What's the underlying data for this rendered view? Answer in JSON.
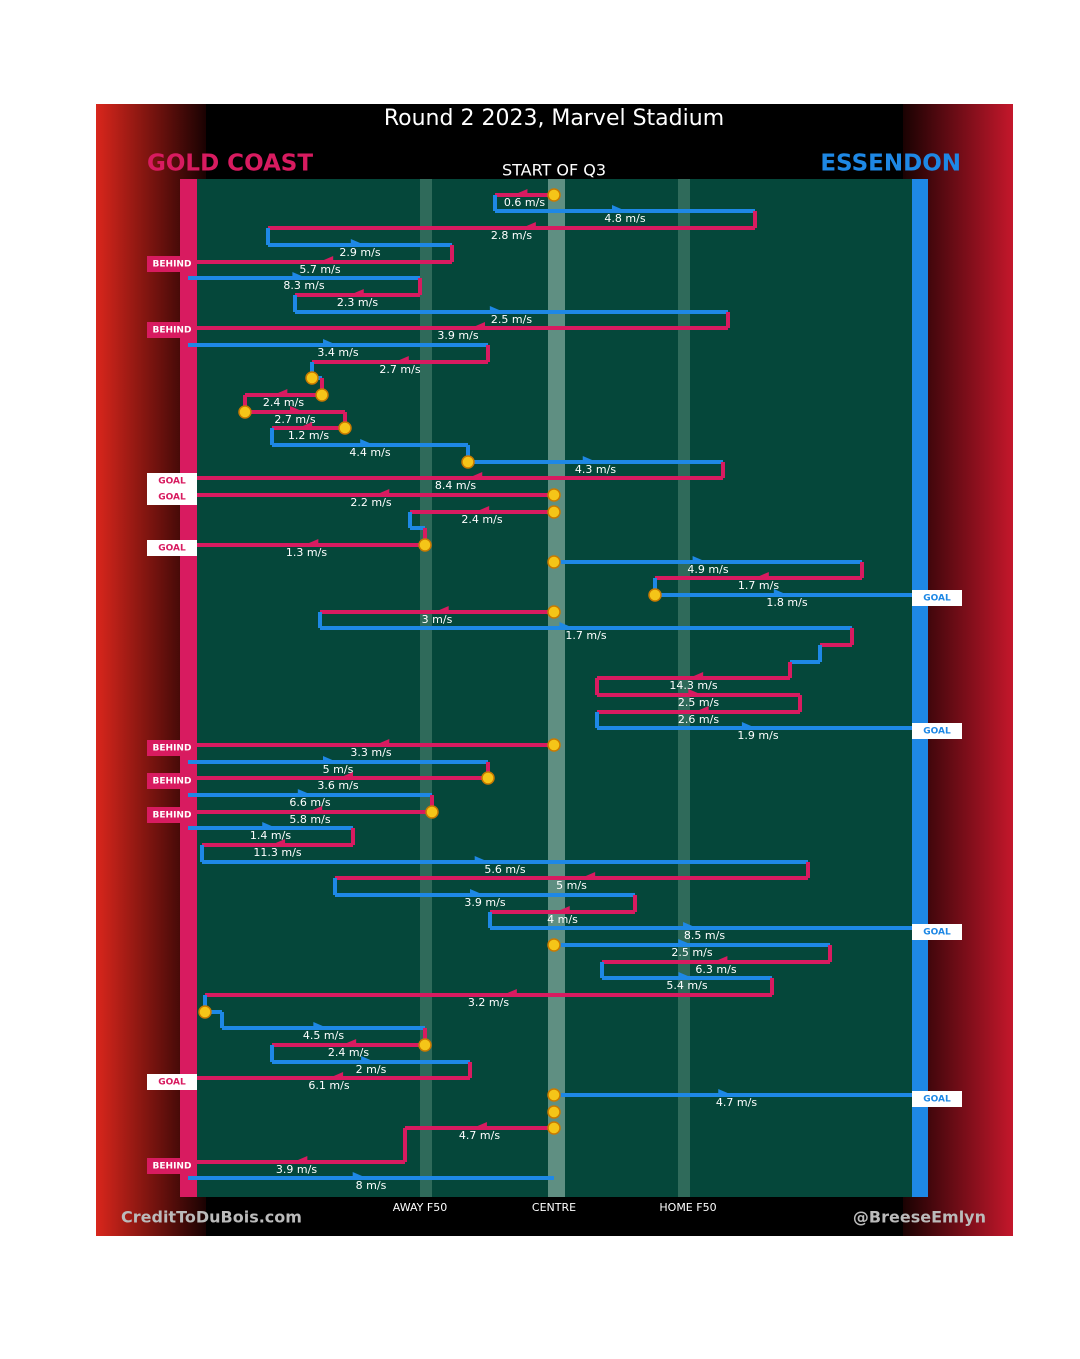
{
  "header": {
    "title": "Round 2 2023, Marvel Stadium",
    "away_team": "GOLD COAST",
    "home_team": "ESSENDON",
    "period": "START OF Q3"
  },
  "zones": [
    "AWAY F50",
    "CENTRE",
    "HOME F50"
  ],
  "footer": {
    "left": "CreditToDuBois.com",
    "right": "@BreeseEmlyn"
  },
  "segments": [
    {
      "label": "0.6 m/s"
    },
    {
      "label": "4.8 m/s"
    },
    {
      "label": "2.8 m/s"
    },
    {
      "label": "2.9 m/s"
    },
    {
      "label": "5.7 m/s"
    },
    {
      "label": "8.3 m/s"
    },
    {
      "label": "2.3 m/s"
    },
    {
      "label": "2.5 m/s"
    },
    {
      "label": "3.9 m/s"
    },
    {
      "label": "3.4 m/s"
    },
    {
      "label": "2.7 m/s"
    },
    {
      "label": "2.4 m/s"
    },
    {
      "label": "2.7 m/s"
    },
    {
      "label": "1.2 m/s"
    },
    {
      "label": "4.4 m/s"
    },
    {
      "label": "4.3 m/s"
    },
    {
      "label": "8.4 m/s"
    },
    {
      "label": "2.2 m/s"
    },
    {
      "label": "2.4 m/s"
    },
    {
      "label": "1.3 m/s"
    },
    {
      "label": "4.9 m/s"
    },
    {
      "label": "1.7 m/s"
    },
    {
      "label": "1.8 m/s"
    },
    {
      "label": "3 m/s"
    },
    {
      "label": "1.7 m/s"
    },
    {
      "label": "14.3 m/s"
    },
    {
      "label": "2.5 m/s"
    },
    {
      "label": "2.6 m/s"
    },
    {
      "label": "1.9 m/s"
    },
    {
      "label": "3.3 m/s"
    },
    {
      "label": "5 m/s"
    },
    {
      "label": "3.6 m/s"
    },
    {
      "label": "6.6 m/s"
    },
    {
      "label": "5.8 m/s"
    },
    {
      "label": "1.4 m/s"
    },
    {
      "label": "11.3 m/s"
    },
    {
      "label": "5.6 m/s"
    },
    {
      "label": "5 m/s"
    },
    {
      "label": "3.9 m/s"
    },
    {
      "label": "4 m/s"
    },
    {
      "label": "8.5 m/s"
    },
    {
      "label": "2.5 m/s"
    },
    {
      "label": "6.3 m/s"
    },
    {
      "label": "5.4 m/s"
    },
    {
      "label": "3.2 m/s"
    },
    {
      "label": "4.5 m/s"
    },
    {
      "label": "2.4 m/s"
    },
    {
      "label": "2 m/s"
    },
    {
      "label": "6.1 m/s"
    },
    {
      "label": "4.7 m/s"
    },
    {
      "label": "4.7 m/s"
    },
    {
      "label": "3.9 m/s"
    },
    {
      "label": "8 m/s"
    }
  ],
  "outcomes": [
    {
      "label": "BEHIND"
    },
    {
      "label": "BEHIND"
    },
    {
      "label": "GOAL"
    },
    {
      "label": "GOAL"
    },
    {
      "label": "GOAL"
    },
    {
      "label": "GOAL"
    },
    {
      "label": "GOAL"
    },
    {
      "label": "BEHIND"
    },
    {
      "label": "BEHIND"
    },
    {
      "label": "BEHIND"
    },
    {
      "label": "GOAL"
    },
    {
      "label": "GOAL"
    },
    {
      "label": "GOAL"
    },
    {
      "label": "BEHIND"
    }
  ]
}
